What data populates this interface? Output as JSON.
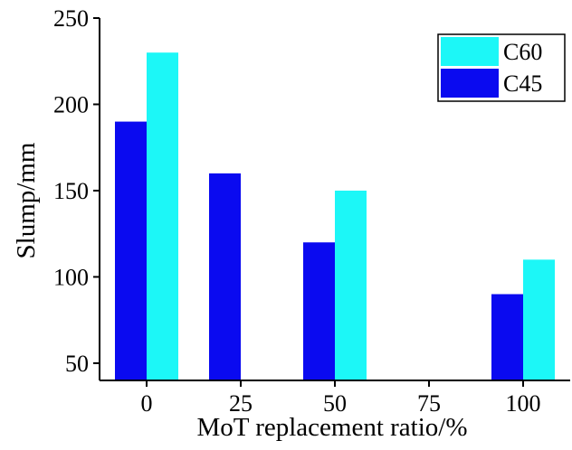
{
  "chart_data": {
    "type": "bar",
    "categories": [
      "0",
      "25",
      "50",
      "75",
      "100"
    ],
    "series": [
      {
        "name": "C45",
        "color": "#0a0af0",
        "values": [
          190,
          160,
          120,
          null,
          90
        ]
      },
      {
        "name": "C60",
        "color": "#1cf7f7",
        "values": [
          230,
          null,
          150,
          null,
          110
        ]
      }
    ],
    "xlabel": "MoT replacement ratio/%",
    "ylabel": "Slump/mm",
    "ylim": [
      40,
      250
    ],
    "yticks": [
      50,
      100,
      150,
      200,
      250
    ],
    "legend_order": [
      "C60",
      "C45"
    ],
    "legend_position": "top-right",
    "grid": false
  }
}
